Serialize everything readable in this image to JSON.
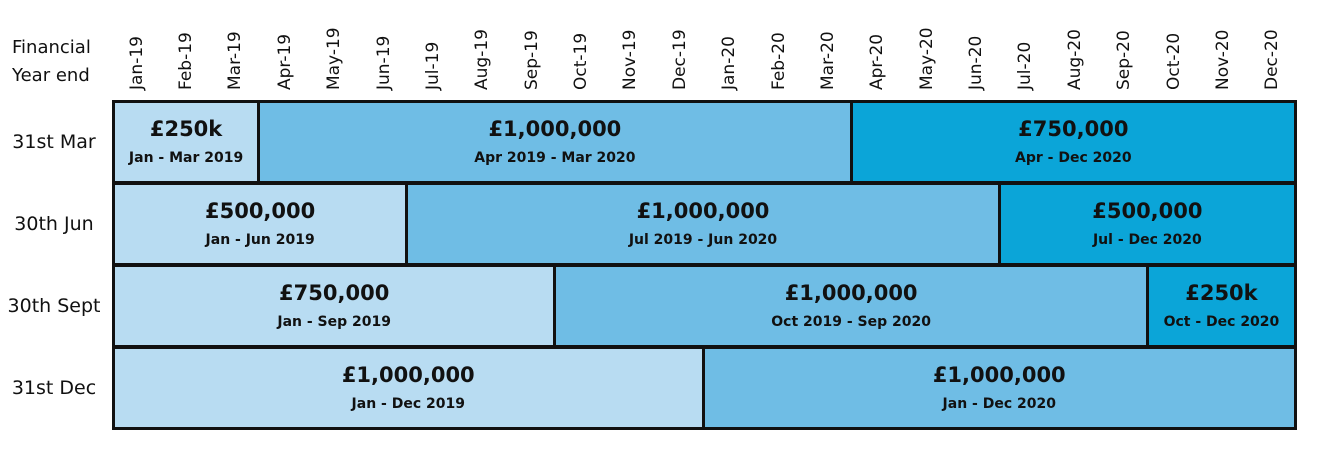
{
  "header": {
    "corner_line1": "Financial",
    "corner_line2": "Year end"
  },
  "months": [
    "Jan-19",
    "Feb-19",
    "Mar-19",
    "Apr-19",
    "May-19",
    "Jun-19",
    "Jul-19",
    "Aug-19",
    "Sep-19",
    "Oct-19",
    "Nov-19",
    "Dec-19",
    "Jan-20",
    "Feb-20",
    "Mar-20",
    "Apr-20",
    "May-20",
    "Jun-20",
    "Jul-20",
    "Aug-20",
    "Sep-20",
    "Oct-20",
    "Nov-20",
    "Dec-20"
  ],
  "colors": {
    "light": "#b8dcf2",
    "medium": "#6fbde5",
    "dark": "#0ba5d8",
    "border": "#111111"
  },
  "rows": [
    {
      "label": "31st Mar",
      "segments": [
        {
          "amount": "£250k",
          "period": "Jan - Mar 2019",
          "start_month": 0,
          "months": 3,
          "shade": "light"
        },
        {
          "amount": "£1,000,000",
          "period": "Apr 2019 - Mar 2020",
          "start_month": 3,
          "months": 12,
          "shade": "medium"
        },
        {
          "amount": "£750,000",
          "period": "Apr - Dec 2020",
          "start_month": 15,
          "months": 9,
          "shade": "dark"
        }
      ]
    },
    {
      "label": "30th Jun",
      "segments": [
        {
          "amount": "£500,000",
          "period": "Jan - Jun 2019",
          "start_month": 0,
          "months": 6,
          "shade": "light"
        },
        {
          "amount": "£1,000,000",
          "period": "Jul 2019 - Jun 2020",
          "start_month": 6,
          "months": 12,
          "shade": "medium"
        },
        {
          "amount": "£500,000",
          "period": "Jul - Dec 2020",
          "start_month": 18,
          "months": 6,
          "shade": "dark"
        }
      ]
    },
    {
      "label": "30th Sept",
      "segments": [
        {
          "amount": "£750,000",
          "period": "Jan - Sep 2019",
          "start_month": 0,
          "months": 9,
          "shade": "light"
        },
        {
          "amount": "£1,000,000",
          "period": "Oct 2019 - Sep 2020",
          "start_month": 9,
          "months": 12,
          "shade": "medium"
        },
        {
          "amount": "£250k",
          "period": "Oct - Dec 2020",
          "start_month": 21,
          "months": 3,
          "shade": "dark"
        }
      ]
    },
    {
      "label": "31st Dec",
      "segments": [
        {
          "amount": "£1,000,000",
          "period": "Jan - Dec 2019",
          "start_month": 0,
          "months": 12,
          "shade": "light"
        },
        {
          "amount": "£1,000,000",
          "period": "Jan - Dec 2020",
          "start_month": 12,
          "months": 12,
          "shade": "medium"
        }
      ]
    }
  ]
}
